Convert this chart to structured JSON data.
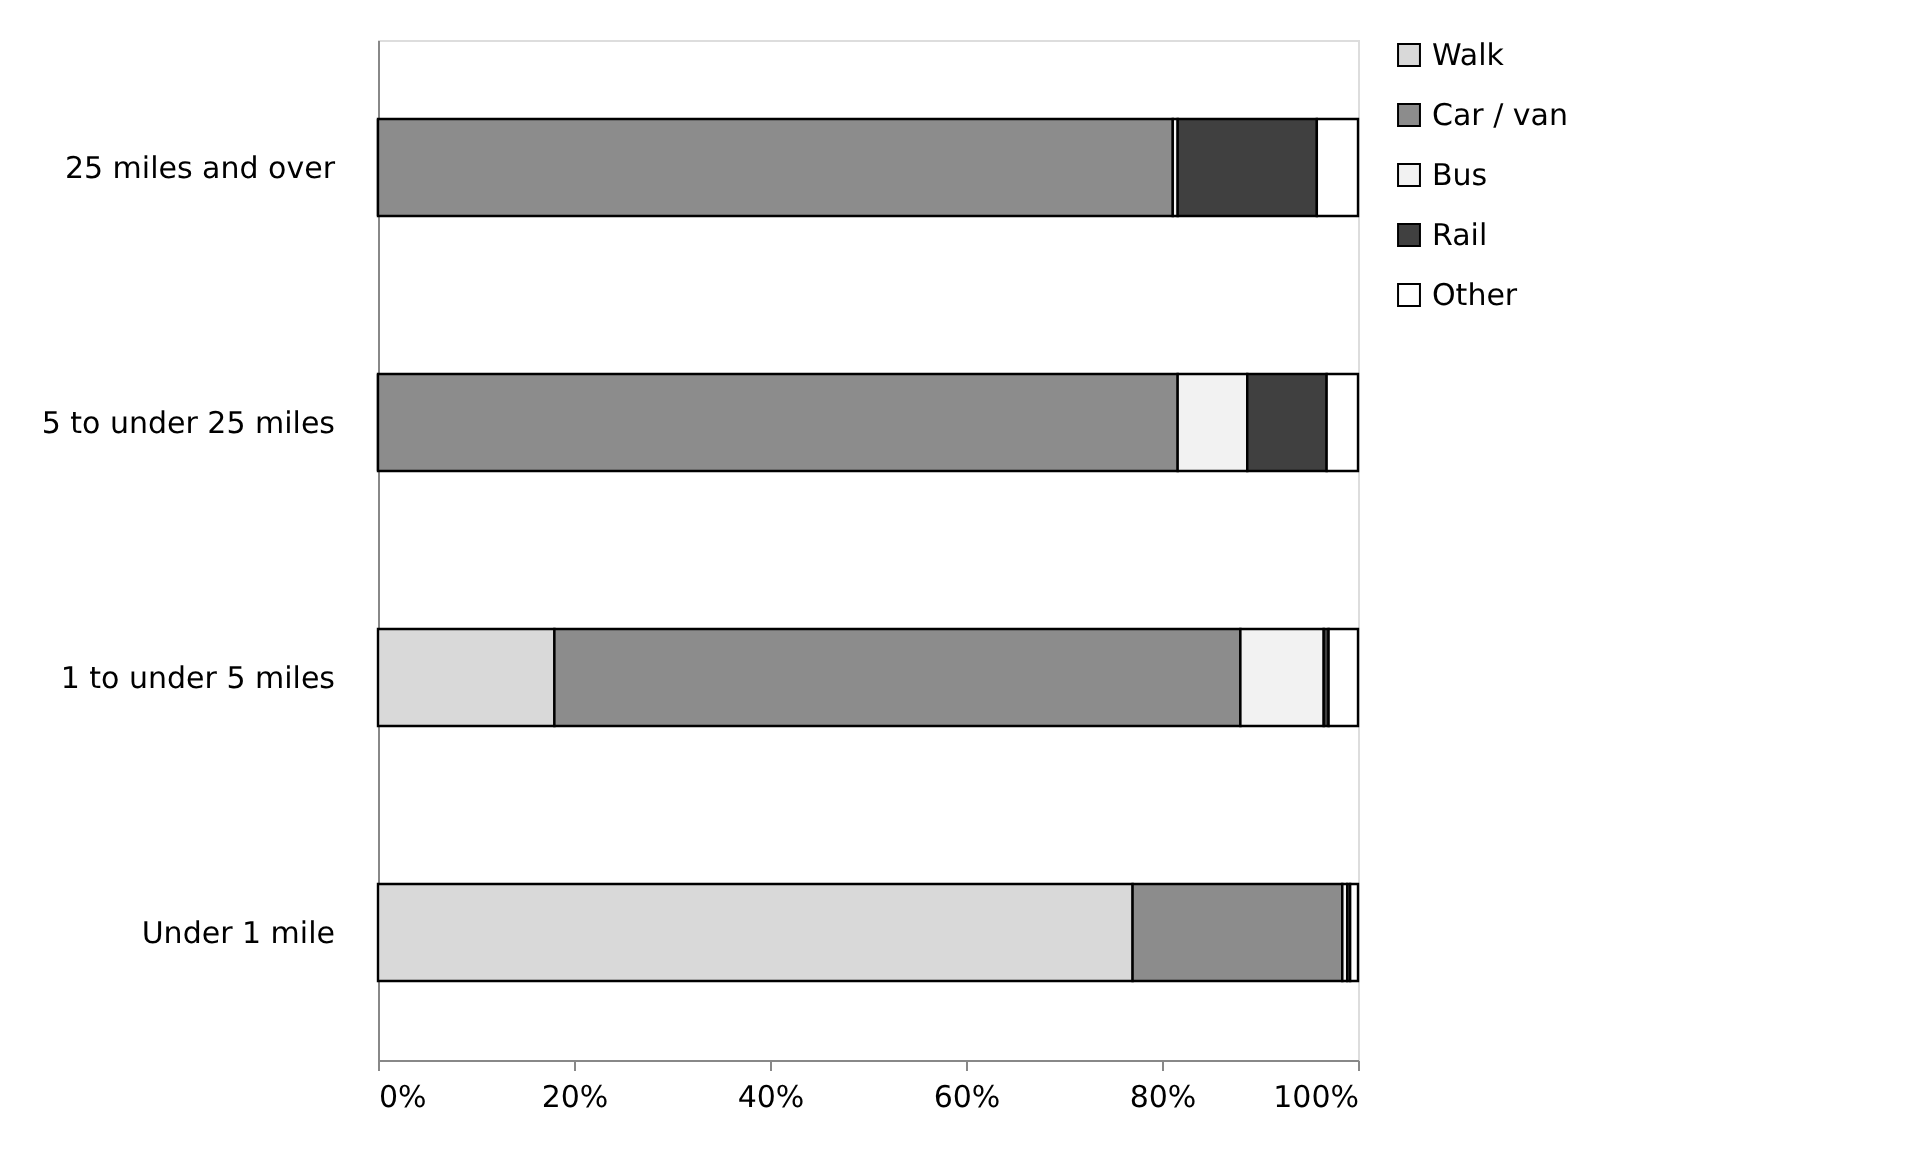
{
  "chart_data": {
    "type": "bar",
    "orientation": "horizontal",
    "stacked": true,
    "categories": [
      "25 miles and over",
      "5 to under 25 miles",
      "1 to under 5 miles",
      "Under 1 mile"
    ],
    "series": [
      {
        "name": "Walk",
        "color": "#d9d9d9",
        "values": [
          0,
          0,
          18,
          77
        ]
      },
      {
        "name": "Car / van",
        "color": "#8c8c8c",
        "values": [
          81.1,
          81.6,
          70,
          21.4
        ]
      },
      {
        "name": "Bus",
        "color": "#f2f2f2",
        "values": [
          0.5,
          7.1,
          8.5,
          0.5
        ]
      },
      {
        "name": "Rail",
        "color": "#404040",
        "values": [
          14.2,
          8.1,
          0.5,
          0.3
        ]
      },
      {
        "name": "Other",
        "color": "#ffffff",
        "values": [
          4.2,
          3.2,
          3,
          0.8
        ]
      }
    ],
    "xlim": [
      0,
      100
    ],
    "xticks": [
      {
        "value": 0,
        "label": "0%"
      },
      {
        "value": 20,
        "label": "20%"
      },
      {
        "value": 40,
        "label": "40%"
      },
      {
        "value": 60,
        "label": "60%"
      },
      {
        "value": 80,
        "label": "80%"
      },
      {
        "value": 100,
        "label": "100%"
      }
    ],
    "grid": false,
    "legend": "right"
  }
}
